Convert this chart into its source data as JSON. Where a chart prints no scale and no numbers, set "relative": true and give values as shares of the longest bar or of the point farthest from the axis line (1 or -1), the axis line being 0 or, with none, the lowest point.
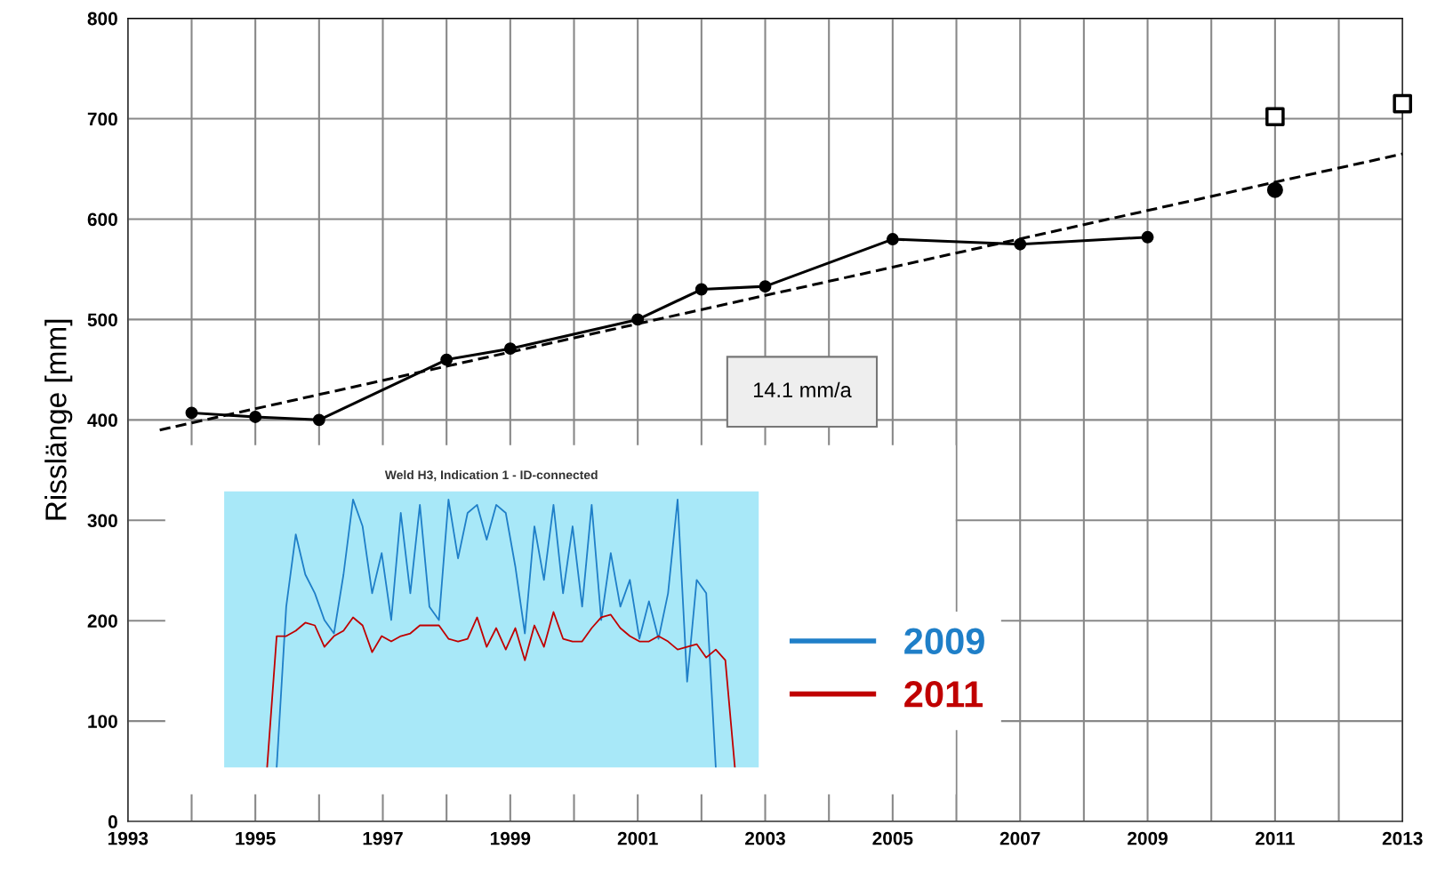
{
  "chart_data": [
    {
      "type": "line",
      "ylabel": "Risslänge [mm]",
      "xlim": [
        1993,
        2013
      ],
      "ylim": [
        0,
        800
      ],
      "xticks": [
        1993,
        {
          "value": 1994,
          "label": null
        },
        1995,
        {
          "value": 1996,
          "label": null
        },
        1997,
        {
          "value": 1998,
          "label": null
        },
        1999,
        {
          "value": 2000,
          "label": null
        },
        2001,
        {
          "value": 2002,
          "label": null
        },
        2003,
        {
          "value": 2004,
          "label": null
        },
        2005,
        {
          "value": 2006,
          "label": null
        },
        2007,
        {
          "value": 2008,
          "label": null
        },
        2009,
        {
          "value": 2010,
          "label": null
        },
        2011,
        {
          "value": 2012,
          "label": null
        },
        2013
      ],
      "yticks": [
        0,
        100,
        200,
        300,
        400,
        500,
        600,
        700,
        800
      ],
      "grid": true,
      "annotations": [
        "14.1 mm/a"
      ],
      "series": [
        {
          "type": "line",
          "color": "#000000",
          "marker": "circle",
          "x": [
            1994,
            1995,
            1996,
            1998,
            1999,
            2001,
            2002,
            2003,
            2005,
            2007,
            2009
          ],
          "values": [
            407,
            403,
            400,
            460,
            471,
            500,
            530,
            533,
            580,
            575,
            582
          ]
        },
        {
          "type": "scatter",
          "color": "#000000",
          "marker": "circle",
          "x": [
            2011
          ],
          "values": [
            629
          ]
        },
        {
          "type": "scatter",
          "color": "#000000",
          "marker": "square",
          "x": [
            2011,
            2013
          ],
          "values": [
            702,
            715
          ]
        },
        {
          "type": "line",
          "color": "#000000",
          "marker": "none",
          "line_style": "dashed",
          "x": [
            1993.5,
            2013
          ],
          "values": [
            390,
            665
          ]
        }
      ]
    },
    {
      "type": "line",
      "title": "Weld H3, Indication 1 - ID-connected",
      "relative": true,
      "legend": "right",
      "categories": [
        null,
        null,
        null,
        null,
        null,
        null,
        null,
        null,
        null,
        null,
        null,
        null,
        null,
        null,
        null,
        null,
        null,
        null,
        null,
        null,
        null,
        null,
        null,
        null,
        null,
        null,
        null,
        null,
        null,
        null,
        null,
        null,
        null,
        null,
        null,
        null,
        null,
        null,
        null,
        null,
        null,
        null,
        null,
        null,
        null,
        null,
        null,
        null,
        null,
        null,
        null,
        null,
        null,
        null,
        null,
        null
      ],
      "series": [
        {
          "name": "2009",
          "color": "#1f7fc8",
          "values": [
            null,
            null,
            null,
            null,
            null,
            0,
            0.6,
            0.87,
            0.72,
            0.65,
            0.55,
            0.5,
            0.72,
            1.0,
            0.9,
            0.65,
            0.8,
            0.55,
            0.95,
            0.65,
            0.98,
            0.6,
            0.55,
            1.0,
            0.78,
            0.95,
            0.98,
            0.85,
            0.98,
            0.95,
            0.75,
            0.5,
            0.9,
            0.7,
            0.98,
            0.65,
            0.9,
            0.6,
            0.98,
            0.55,
            0.8,
            0.6,
            0.7,
            0.48,
            0.62,
            0.48,
            0.65,
            1.0,
            0.32,
            0.7,
            0.65,
            0,
            null,
            null,
            null,
            null
          ]
        },
        {
          "name": "2011",
          "color": "#c00000",
          "values": [
            null,
            null,
            null,
            null,
            0,
            0.49,
            0.49,
            0.51,
            0.54,
            0.53,
            0.45,
            0.49,
            0.51,
            0.56,
            0.53,
            0.43,
            0.49,
            0.47,
            0.49,
            0.5,
            0.53,
            0.53,
            0.53,
            0.48,
            0.47,
            0.48,
            0.56,
            0.45,
            0.52,
            0.44,
            0.52,
            0.4,
            0.53,
            0.45,
            0.58,
            0.48,
            0.47,
            0.47,
            0.52,
            0.56,
            0.57,
            0.52,
            0.49,
            0.47,
            0.47,
            0.49,
            0.47,
            0.44,
            0.45,
            0.46,
            0.41,
            0.44,
            0.4,
            0,
            null,
            null
          ]
        }
      ]
    }
  ]
}
